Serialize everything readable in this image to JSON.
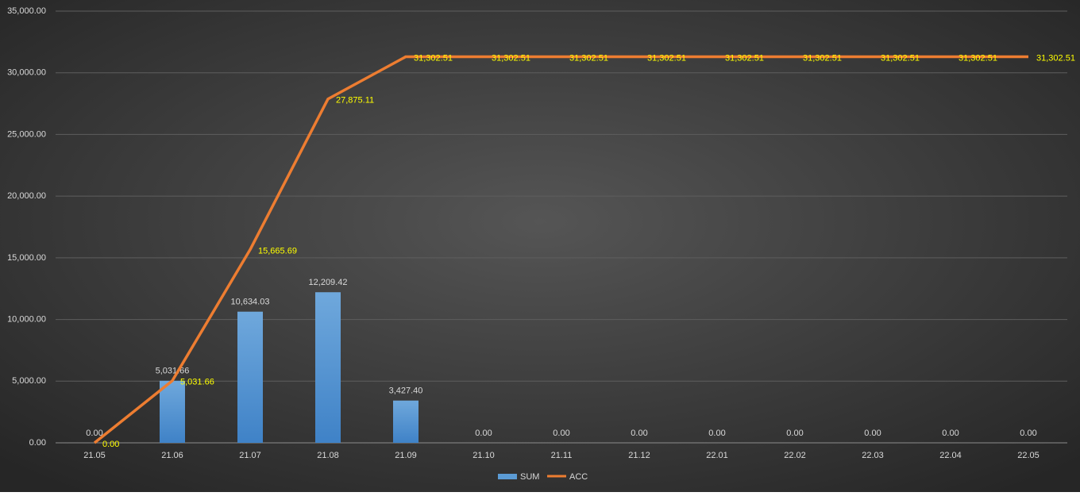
{
  "chart_data": {
    "type": "combo",
    "categories": [
      "21.05",
      "21.06",
      "21.07",
      "21.08",
      "21.09",
      "21.10",
      "21.11",
      "21.12",
      "22.01",
      "22.02",
      "22.03",
      "22.04",
      "22.05"
    ],
    "series": [
      {
        "name": "SUM",
        "type": "bar",
        "color": "#5b9bd5",
        "label_color": "#d9d9d9",
        "values": [
          0,
          5031.66,
          10634.03,
          12209.42,
          3427.4,
          0,
          0,
          0,
          0,
          0,
          0,
          0,
          0
        ],
        "value_labels": [
          "0.00",
          "5,031.66",
          "10,634.03",
          "12,209.42",
          "3,427.40",
          "0.00",
          "0.00",
          "0.00",
          "0.00",
          "0.00",
          "0.00",
          "0.00",
          "0.00"
        ]
      },
      {
        "name": "ACC",
        "type": "line",
        "color": "#ed7d31",
        "label_color": "#ffff00",
        "values": [
          0,
          5031.66,
          15665.69,
          27875.11,
          31302.51,
          31302.51,
          31302.51,
          31302.51,
          31302.51,
          31302.51,
          31302.51,
          31302.51,
          31302.51
        ],
        "value_labels": [
          "0.00",
          "5,031.66",
          "15,665.69",
          "27,875.11",
          "31,302.51",
          "31,302.51",
          "31,302.51",
          "31,302.51",
          "31,302.51",
          "31,302.51",
          "31,302.51",
          "31,302.51",
          "31,302.51"
        ]
      }
    ],
    "ylim": [
      0,
      35000
    ],
    "yticks": [
      {
        "value": 0,
        "label": "0.00"
      },
      {
        "value": 5000,
        "label": "5,000.00"
      },
      {
        "value": 10000,
        "label": "10,000.00"
      },
      {
        "value": 15000,
        "label": "15,000.00"
      },
      {
        "value": 20000,
        "label": "20,000.00"
      },
      {
        "value": 25000,
        "label": "25,000.00"
      },
      {
        "value": 30000,
        "label": "30,000.00"
      },
      {
        "value": 35000,
        "label": "35,000.00"
      }
    ],
    "grid": true,
    "legend": "bottom"
  }
}
